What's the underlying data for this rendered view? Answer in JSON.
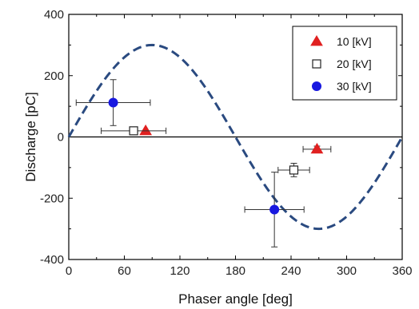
{
  "chart_data": {
    "type": "scatter",
    "xlabel": "Phaser angle  [deg]",
    "ylabel": "Discharge [pC]",
    "xlim": [
      0,
      360
    ],
    "ylim": [
      -400,
      400
    ],
    "xticks": [
      0,
      60,
      120,
      180,
      240,
      300,
      360
    ],
    "yticks": [
      -400,
      -200,
      0,
      200,
      400
    ],
    "grid": false,
    "legend_position": "top-right",
    "reference_line": {
      "type": "sine",
      "amplitude": 300,
      "period_deg": 360,
      "style": "dashed",
      "color": "#2a4a80"
    },
    "zero_line": true,
    "series": [
      {
        "name": "10 [kV]",
        "marker": "triangle",
        "filled": true,
        "color": "#e02020",
        "points": [
          {
            "x": 83,
            "y": 20,
            "xerr": 0,
            "yerr": 0
          },
          {
            "x": 268,
            "y": -40,
            "xerr": 15,
            "yerr": 10
          }
        ]
      },
      {
        "name": "20 [kV]",
        "marker": "square",
        "filled": false,
        "color": "#222222",
        "points": [
          {
            "x": 70,
            "y": 20,
            "xerr": 35,
            "yerr": 10
          },
          {
            "x": 243,
            "y": -108,
            "xerr": 17,
            "yerr": 22
          }
        ]
      },
      {
        "name": "30 [kV]",
        "marker": "circle",
        "filled": true,
        "color": "#1818e0",
        "points": [
          {
            "x": 48,
            "y": 112,
            "xerr": 40,
            "yerr": 75
          },
          {
            "x": 222,
            "y": -237,
            "xerr": 32,
            "yerr": 122
          }
        ]
      }
    ]
  }
}
